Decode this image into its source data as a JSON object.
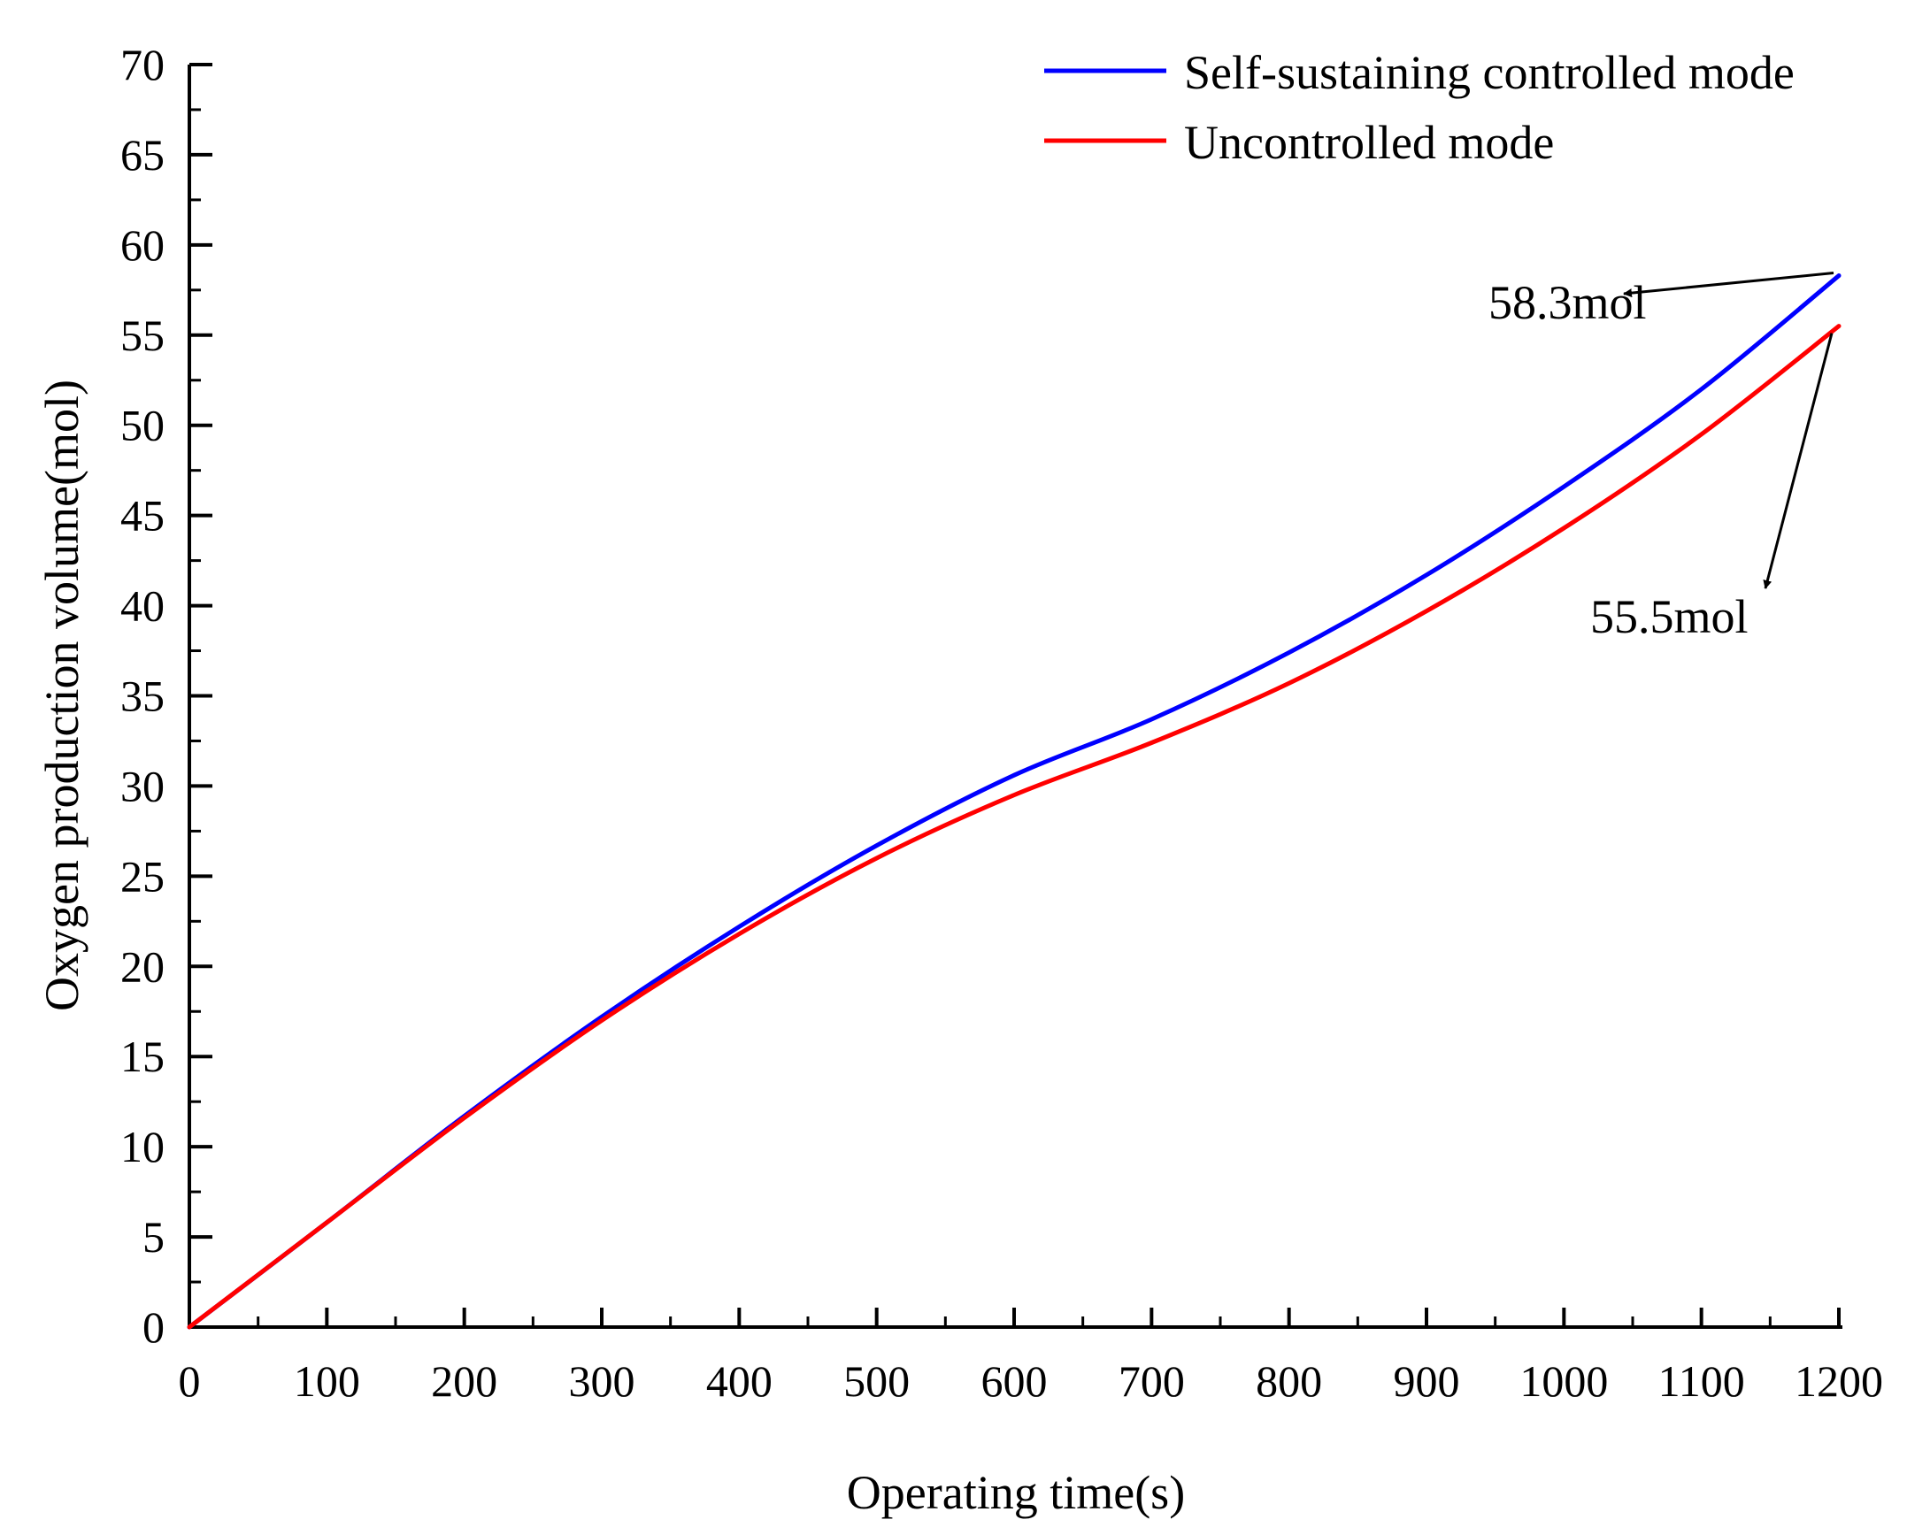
{
  "chart_data": {
    "type": "line",
    "xlabel": "Operating time(s)",
    "ylabel": "Oxygen production volume(mol)",
    "xlim": [
      0,
      1200
    ],
    "ylim": [
      0,
      70
    ],
    "xticks": [
      0,
      100,
      200,
      300,
      400,
      500,
      600,
      700,
      800,
      900,
      1000,
      1100,
      1200
    ],
    "yticks": [
      0,
      5,
      10,
      15,
      20,
      25,
      30,
      35,
      40,
      45,
      50,
      55,
      60,
      65,
      70
    ],
    "grid": false,
    "legend_position": "top-right",
    "series": [
      {
        "name": "Self-sustaining controlled mode",
        "color": "#0000ff",
        "x": [
          0,
          100,
          200,
          300,
          400,
          500,
          600,
          700,
          800,
          900,
          1000,
          1100,
          1200
        ],
        "y": [
          0,
          5.8,
          11.7,
          17.2,
          22.2,
          26.7,
          30.6,
          33.7,
          37.4,
          41.7,
          46.6,
          52.0,
          58.3
        ]
      },
      {
        "name": "Uncontrolled mode",
        "color": "#ff0000",
        "x": [
          0,
          100,
          200,
          300,
          400,
          500,
          600,
          700,
          800,
          900,
          1000,
          1100,
          1200
        ],
        "y": [
          0,
          5.8,
          11.6,
          17.0,
          21.8,
          26.0,
          29.5,
          32.4,
          35.7,
          39.7,
          44.3,
          49.5,
          55.5
        ]
      }
    ],
    "annotations": [
      {
        "text": "58.3mol",
        "x": 1200,
        "y": 58.3,
        "label_position": "left"
      },
      {
        "text": "55.5mol",
        "x": 1200,
        "y": 55.5,
        "label_position": "below-left"
      }
    ]
  }
}
